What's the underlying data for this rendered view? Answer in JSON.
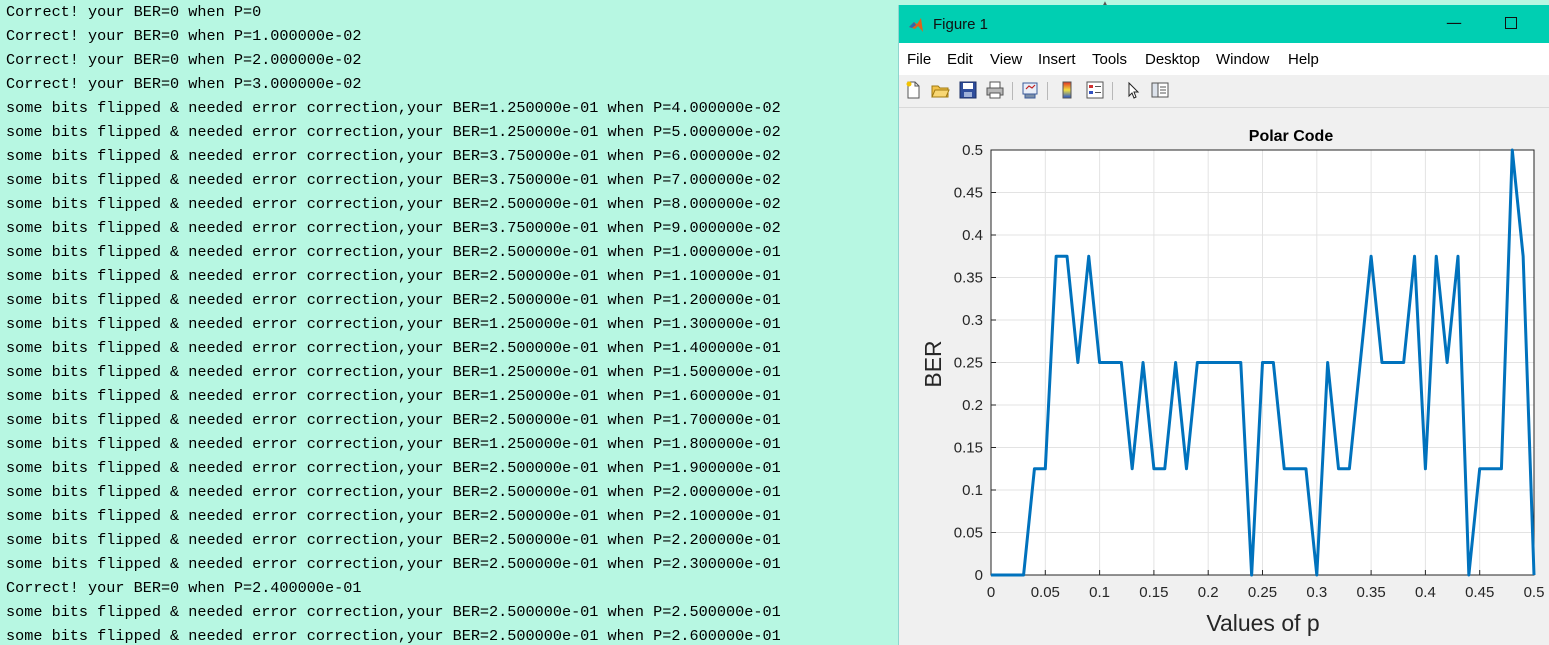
{
  "console": {
    "lines": [
      "Correct! your BER=0 when P=0",
      "Correct! your BER=0 when P=1.000000e-02",
      "Correct! your BER=0 when P=2.000000e-02",
      "Correct! your BER=0 when P=3.000000e-02",
      "some bits flipped & needed error correction,your BER=1.250000e-01 when P=4.000000e-02",
      "some bits flipped & needed error correction,your BER=1.250000e-01 when P=5.000000e-02",
      "some bits flipped & needed error correction,your BER=3.750000e-01 when P=6.000000e-02",
      "some bits flipped & needed error correction,your BER=3.750000e-01 when P=7.000000e-02",
      "some bits flipped & needed error correction,your BER=2.500000e-01 when P=8.000000e-02",
      "some bits flipped & needed error correction,your BER=3.750000e-01 when P=9.000000e-02",
      "some bits flipped & needed error correction,your BER=2.500000e-01 when P=1.000000e-01",
      "some bits flipped & needed error correction,your BER=2.500000e-01 when P=1.100000e-01",
      "some bits flipped & needed error correction,your BER=2.500000e-01 when P=1.200000e-01",
      "some bits flipped & needed error correction,your BER=1.250000e-01 when P=1.300000e-01",
      "some bits flipped & needed error correction,your BER=2.500000e-01 when P=1.400000e-01",
      "some bits flipped & needed error correction,your BER=1.250000e-01 when P=1.500000e-01",
      "some bits flipped & needed error correction,your BER=1.250000e-01 when P=1.600000e-01",
      "some bits flipped & needed error correction,your BER=2.500000e-01 when P=1.700000e-01",
      "some bits flipped & needed error correction,your BER=1.250000e-01 when P=1.800000e-01",
      "some bits flipped & needed error correction,your BER=2.500000e-01 when P=1.900000e-01",
      "some bits flipped & needed error correction,your BER=2.500000e-01 when P=2.000000e-01",
      "some bits flipped & needed error correction,your BER=2.500000e-01 when P=2.100000e-01",
      "some bits flipped & needed error correction,your BER=2.500000e-01 when P=2.200000e-01",
      "some bits flipped & needed error correction,your BER=2.500000e-01 when P=2.300000e-01",
      "Correct! your BER=0 when P=2.400000e-01",
      "some bits flipped & needed error correction,your BER=2.500000e-01 when P=2.500000e-01",
      "some bits flipped & needed error correction,your BER=2.500000e-01 when P=2.600000e-01"
    ],
    "scroll_up_glyph": "▲",
    "scroll_down_glyph": "▼",
    "background_color": "#b7f7e2"
  },
  "figure": {
    "title": "Figure 1",
    "title_icon": "matlab-logo-icon",
    "minimize_glyph": "—",
    "titlebar_color": "#00cfb2",
    "menus": [
      "File",
      "Edit",
      "View",
      "Insert",
      "Tools",
      "Desktop",
      "Window",
      "Help"
    ],
    "toolbar": [
      {
        "name": "new-figure-icon"
      },
      {
        "name": "open-file-icon"
      },
      {
        "name": "save-icon"
      },
      {
        "name": "print-icon"
      },
      {
        "name": "link-plot-icon"
      },
      {
        "name": "insert-colorbar-icon"
      },
      {
        "name": "insert-legend-icon"
      },
      {
        "name": "edit-plot-icon"
      },
      {
        "name": "property-editor-icon"
      }
    ]
  },
  "chart_data": {
    "type": "line",
    "title": "Polar Code",
    "xlabel": "Values of p",
    "ylabel": "BER",
    "xlim": [
      0,
      0.5
    ],
    "ylim": [
      0,
      0.5
    ],
    "xticks": [
      "0",
      "0.05",
      "0.1",
      "0.15",
      "0.2",
      "0.25",
      "0.3",
      "0.35",
      "0.4",
      "0.45",
      "0.5"
    ],
    "yticks": [
      "0",
      "0.05",
      "0.1",
      "0.15",
      "0.2",
      "0.25",
      "0.3",
      "0.35",
      "0.4",
      "0.45",
      "0.5"
    ],
    "grid": true,
    "line_color": "#0072bd",
    "x": [
      0,
      0.01,
      0.02,
      0.03,
      0.04,
      0.05,
      0.06,
      0.07,
      0.08,
      0.09,
      0.1,
      0.11,
      0.12,
      0.13,
      0.14,
      0.15,
      0.16,
      0.17,
      0.18,
      0.19,
      0.2,
      0.21,
      0.22,
      0.23,
      0.24,
      0.25,
      0.26,
      0.27,
      0.28,
      0.29,
      0.3,
      0.31,
      0.32,
      0.33,
      0.34,
      0.35,
      0.36,
      0.37,
      0.38,
      0.39,
      0.4,
      0.41,
      0.42,
      0.43,
      0.44,
      0.45,
      0.46,
      0.47,
      0.48,
      0.49,
      0.5
    ],
    "y": [
      0,
      0,
      0,
      0,
      0.125,
      0.125,
      0.375,
      0.375,
      0.25,
      0.375,
      0.25,
      0.25,
      0.25,
      0.125,
      0.25,
      0.125,
      0.125,
      0.25,
      0.125,
      0.25,
      0.25,
      0.25,
      0.25,
      0.25,
      0,
      0.25,
      0.25,
      0.125,
      0.125,
      0.125,
      0,
      0.25,
      0.125,
      0.125,
      0.25,
      0.375,
      0.25,
      0.25,
      0.25,
      0.375,
      0.125,
      0.375,
      0.25,
      0.375,
      0,
      0.125,
      0.125,
      0.125,
      0.5,
      0.375,
      0
    ]
  }
}
